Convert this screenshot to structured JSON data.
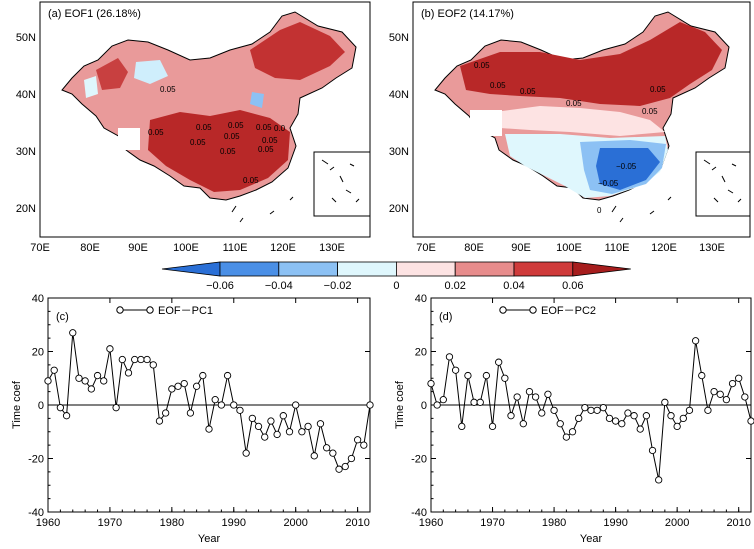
{
  "maps": [
    {
      "id": "eof1",
      "label": "(a)  EOF1 (26.18%)",
      "lat_labels": [
        "50N",
        "40N",
        "30N",
        "20N"
      ],
      "lon_labels": [
        "70E",
        "80E",
        "90E",
        "100E",
        "110E",
        "120E",
        "130E"
      ],
      "contour_labels": [
        "0.05",
        "0.05",
        "0.05",
        "0.05",
        "0.05",
        "0.05",
        "0.05",
        "0.05",
        "0.05",
        "0.05",
        "0.0",
        "0.05"
      ],
      "pattern": "positive loadings over most of China, strongest (>0.04) over the southeast, Yangtze basin and northeast; small near-zero patches in the northwest"
    },
    {
      "id": "eof2",
      "label": "(b)  EOF2 (14.17%)",
      "lat_labels": [
        "50N",
        "40N",
        "30N",
        "20N"
      ],
      "lon_labels": [
        "70E",
        "80E",
        "90E",
        "100E",
        "110E",
        "120E",
        "130E"
      ],
      "contour_labels": [
        "0.05",
        "0.05",
        "0.05",
        "0.05",
        "0.05",
        "0.05",
        "−0.05",
        "−0.05",
        "0"
      ],
      "pattern": "dipole: positive loadings over northern China, negative loadings over southern China"
    }
  ],
  "colorbar": {
    "tick_labels": [
      "−0.06",
      "−0.04",
      "−0.02",
      "0",
      "0.02",
      "0.04",
      "0.06"
    ],
    "levels": [
      -0.06,
      -0.04,
      -0.02,
      0,
      0.02,
      0.04,
      0.06
    ],
    "colors": [
      "#2a6fd6",
      "#4a8fe6",
      "#8cc1f4",
      "#dff7fd",
      "#fde3e3",
      "#e78c8c",
      "#cf3b3b",
      "#a61d1d"
    ]
  },
  "chart_data": [
    {
      "type": "line",
      "panel": "(c)",
      "legend": "EOF－PC1",
      "xlabel": "Year",
      "ylabel": "Time coef",
      "xlim": [
        1960,
        2012
      ],
      "ylim": [
        -40,
        40
      ],
      "x_ticks": [
        1960,
        1970,
        1980,
        1990,
        2000,
        2010
      ],
      "y_ticks": [
        -40,
        -20,
        0,
        20,
        40
      ],
      "x": [
        1960,
        1961,
        1962,
        1963,
        1964,
        1965,
        1966,
        1967,
        1968,
        1969,
        1970,
        1971,
        1972,
        1973,
        1974,
        1975,
        1976,
        1977,
        1978,
        1979,
        1980,
        1981,
        1982,
        1983,
        1984,
        1985,
        1986,
        1987,
        1988,
        1989,
        1990,
        1991,
        1992,
        1993,
        1994,
        1995,
        1996,
        1997,
        1998,
        1999,
        2000,
        2001,
        2002,
        2003,
        2004,
        2005,
        2006,
        2007,
        2008,
        2009,
        2010,
        2011,
        2012
      ],
      "values": [
        9,
        13,
        -1,
        -4,
        27,
        10,
        9,
        6,
        11,
        9,
        21,
        -1,
        17,
        12,
        17,
        17,
        17,
        15,
        -6,
        -3,
        6,
        7,
        8,
        -3,
        7,
        11,
        -9,
        2,
        0,
        11,
        0,
        -2,
        -18,
        -5,
        -8,
        -12,
        -6,
        -11,
        -4,
        -10,
        0,
        -10,
        -8,
        -19,
        -7,
        -16,
        -18,
        -24,
        -23,
        -20,
        -13,
        -15,
        0
      ]
    },
    {
      "type": "line",
      "panel": "(d)",
      "legend": "EOF－PC2",
      "xlabel": "Year",
      "ylabel": "Time coef",
      "xlim": [
        1960,
        2012
      ],
      "ylim": [
        -40,
        40
      ],
      "x_ticks": [
        1960,
        1970,
        1980,
        1990,
        2000,
        2010
      ],
      "y_ticks": [
        -40,
        -20,
        0,
        20,
        40
      ],
      "x": [
        1960,
        1961,
        1962,
        1963,
        1964,
        1965,
        1966,
        1967,
        1968,
        1969,
        1970,
        1971,
        1972,
        1973,
        1974,
        1975,
        1976,
        1977,
        1978,
        1979,
        1980,
        1981,
        1982,
        1983,
        1984,
        1985,
        1986,
        1987,
        1988,
        1989,
        1990,
        1991,
        1992,
        1993,
        1994,
        1995,
        1996,
        1997,
        1998,
        1999,
        2000,
        2001,
        2002,
        2003,
        2004,
        2005,
        2006,
        2007,
        2008,
        2009,
        2010,
        2011,
        2012
      ],
      "values": [
        8,
        0,
        2,
        18,
        13,
        -8,
        11,
        1,
        1,
        11,
        -8,
        16,
        10,
        -4,
        3,
        -7,
        5,
        3,
        -3,
        4,
        -2,
        -7,
        -12,
        -10,
        -5,
        -1,
        -2,
        -2,
        -1,
        -5,
        -6,
        -7,
        -3,
        -4,
        -9,
        -4,
        -17,
        -28,
        1,
        -4,
        -8,
        -5,
        -2,
        24,
        11,
        -2,
        5,
        4,
        2,
        8,
        10,
        3,
        -6
      ]
    }
  ]
}
